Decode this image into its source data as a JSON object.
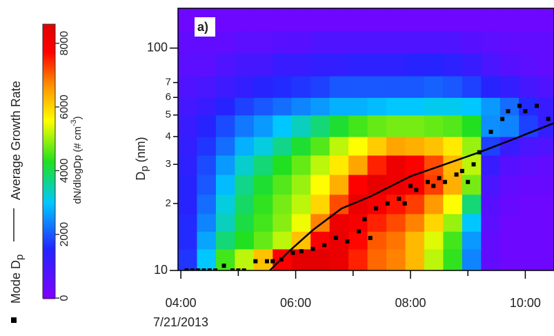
{
  "chart_data": {
    "type": "heatmap",
    "annotation": "a)",
    "x_date_label": "7/21/2013",
    "y_label": {
      "text": "D",
      "sub": "p",
      "rest": " (nm)"
    },
    "xlim": [
      3.95,
      10.5
    ],
    "ylim": [
      10,
      151
    ],
    "log_y": true,
    "xticks": [
      {
        "value": 4,
        "label": "04:00"
      },
      {
        "value": 6,
        "label": "06:00"
      },
      {
        "value": 8,
        "label": "08:00"
      },
      {
        "value": 10,
        "label": "10:00"
      }
    ],
    "xminorticks": [
      5,
      7,
      9
    ],
    "yticks": [
      10,
      100,
      {
        "value": 20,
        "label": "2"
      },
      {
        "value": 30,
        "label": "3"
      },
      {
        "value": 40,
        "label": "4"
      },
      {
        "value": 50,
        "label": "5"
      },
      {
        "value": 60,
        "label": "6"
      },
      {
        "value": 70,
        "label": "7"
      }
    ],
    "x_edges": [
      3.95,
      4.28,
      4.61,
      4.94,
      5.27,
      5.6,
      5.93,
      6.26,
      6.59,
      6.92,
      7.25,
      7.58,
      7.91,
      8.24,
      8.57,
      8.9,
      9.23,
      9.56,
      9.89,
      10.22,
      10.5
    ],
    "y_edges": [
      10,
      12.5,
      15,
      18,
      22,
      27,
      33,
      40,
      50,
      60,
      75,
      95,
      120,
      151
    ],
    "z": [
      [
        1700,
        3000,
        4500,
        5200,
        6200,
        7800,
        8500,
        8500,
        8300,
        7500,
        7000,
        6800,
        6300,
        5200,
        4400,
        2400,
        500,
        300,
        300,
        300
      ],
      [
        1600,
        2700,
        3800,
        4300,
        4700,
        5200,
        6200,
        7800,
        8300,
        7700,
        7100,
        6900,
        6300,
        5400,
        4500,
        2600,
        500,
        300,
        300,
        300
      ],
      [
        1600,
        2400,
        3400,
        4100,
        4500,
        4900,
        5500,
        6800,
        8200,
        8000,
        7500,
        7200,
        6800,
        6000,
        5000,
        3000,
        600,
        300,
        300,
        300
      ],
      [
        1500,
        2200,
        3200,
        3900,
        4400,
        4800,
        5200,
        6000,
        7200,
        8300,
        8000,
        7600,
        7300,
        6600,
        5600,
        3800,
        700,
        400,
        300,
        300
      ],
      [
        1500,
        2000,
        2900,
        3700,
        4200,
        4600,
        5000,
        5600,
        6400,
        7800,
        8400,
        8200,
        7900,
        7300,
        6400,
        4800,
        900,
        500,
        400,
        400
      ],
      [
        1400,
        1900,
        2600,
        3300,
        3800,
        4300,
        4700,
        5200,
        5800,
        6500,
        7500,
        8200,
        7800,
        7200,
        6300,
        5200,
        1200,
        700,
        600,
        500
      ],
      [
        1300,
        1700,
        2200,
        2800,
        3200,
        3700,
        4200,
        4600,
        5200,
        5600,
        6100,
        6500,
        6400,
        6200,
        5800,
        5000,
        1800,
        1200,
        900,
        800
      ],
      [
        1200,
        1500,
        1900,
        2300,
        2600,
        3000,
        3400,
        3800,
        4200,
        4500,
        4700,
        4800,
        4800,
        4700,
        4600,
        4300,
        2500,
        2400,
        1800,
        1300
      ],
      [
        1000,
        1200,
        1500,
        1800,
        2000,
        2200,
        2400,
        2600,
        2800,
        2800,
        2900,
        3000,
        3000,
        3100,
        3100,
        3000,
        2600,
        2200,
        1600,
        1200
      ],
      [
        800,
        900,
        1100,
        1300,
        1500,
        1600,
        1700,
        1800,
        2000,
        2000,
        2000,
        2000,
        2000,
        2100,
        2000,
        1800,
        1500,
        1300,
        1000,
        800
      ],
      [
        600,
        600,
        800,
        1000,
        1000,
        1200,
        1200,
        1300,
        1300,
        1400,
        1400,
        1400,
        1500,
        1500,
        1400,
        1200,
        900,
        700,
        600,
        500
      ],
      [
        500,
        500,
        500,
        600,
        600,
        700,
        700,
        800,
        800,
        800,
        800,
        800,
        800,
        800,
        800,
        700,
        600,
        500,
        500,
        500
      ],
      [
        300,
        300,
        300,
        300,
        300,
        300,
        300,
        300,
        300,
        300,
        300,
        300,
        300,
        300,
        300,
        300,
        300,
        300,
        300,
        300
      ]
    ],
    "colorbar": {
      "label": [
        "dN/dlogDp (# cm",
        "-3",
        ")"
      ],
      "lim": [
        0,
        8600
      ],
      "ticks": [
        0,
        2000,
        4000,
        6000,
        8000
      ],
      "colormap": [
        {
          "stop": 0,
          "color": "#7f00ff"
        },
        {
          "stop": 0.18,
          "color": "#2424ff"
        },
        {
          "stop": 0.35,
          "color": "#00c8ff"
        },
        {
          "stop": 0.5,
          "color": "#20e020"
        },
        {
          "stop": 0.65,
          "color": "#ffff00"
        },
        {
          "stop": 0.78,
          "color": "#ff9000"
        },
        {
          "stop": 0.9,
          "color": "#ff0000"
        },
        {
          "stop": 1,
          "color": "#e00000"
        }
      ]
    },
    "series": [
      {
        "name": "Mode D",
        "name_sub": "p",
        "type": "scatter",
        "color": "#000000",
        "x": [
          4.1,
          4.2,
          4.3,
          4.4,
          4.5,
          4.6,
          4.75,
          4.9,
          5.0,
          5.1,
          5.3,
          5.5,
          5.6,
          5.75,
          5.95,
          6.1,
          6.3,
          6.5,
          6.7,
          6.9,
          7.1,
          7.2,
          7.3,
          7.4,
          7.6,
          7.8,
          7.9,
          8.0,
          8.1,
          8.3,
          8.4,
          8.5,
          8.6,
          8.8,
          8.9,
          9.0,
          9.1,
          9.2,
          9.4,
          9.6,
          9.7,
          9.9,
          10.0,
          10.2,
          10.4
        ],
        "values": [
          10,
          10,
          10,
          10,
          10,
          10,
          10.5,
          10,
          10,
          10,
          11,
          11,
          11,
          11.2,
          12,
          12.2,
          12.5,
          13,
          14,
          13.5,
          15,
          17,
          14,
          19,
          20,
          21,
          20,
          24,
          23,
          25,
          24,
          26,
          25,
          27,
          28,
          25,
          30,
          34,
          42,
          48,
          52,
          55,
          52,
          55,
          48
        ]
      },
      {
        "name": "Average Growth Rate",
        "type": "line",
        "color": "#000000",
        "x": [
          5.55,
          5.9,
          6.3,
          6.8,
          7.3,
          8.0,
          8.6,
          9.2,
          9.8,
          10.5
        ],
        "values": [
          10,
          12.3,
          15.2,
          19,
          21.5,
          26.5,
          30,
          34,
          39,
          46
        ]
      }
    ]
  }
}
